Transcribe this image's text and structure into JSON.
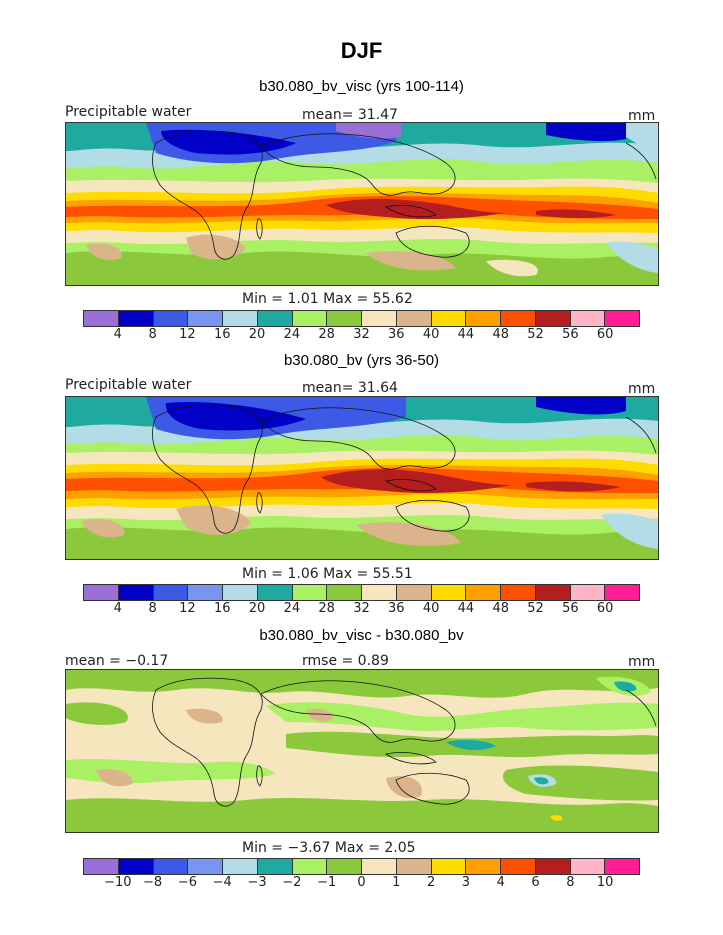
{
  "figure": {
    "title": "DJF"
  },
  "panels": [
    {
      "subtitle": "b30.080_bv_visc (yrs 100-114)",
      "left_label": "Precipitable water",
      "center_label": "mean=   31.47",
      "units": "mm",
      "stats": "Min =    1.01 Max =   55.62"
    },
    {
      "subtitle": "b30.080_bv (yrs 36-50)",
      "left_label": "Precipitable water",
      "center_label": "mean=   31.64",
      "units": "mm",
      "stats": "Min =    1.06 Max =   55.51"
    },
    {
      "subtitle": "b30.080_bv_visc - b30.080_bv",
      "left_label": "mean =   −0.17",
      "center_label": "rmse =    0.89",
      "units": "mm",
      "stats": "Min =   −3.67 Max =    2.05"
    }
  ],
  "colorbars": {
    "absolute": {
      "colors": [
        "#9a6fd8",
        "#0000c8",
        "#3c5ae6",
        "#7896f0",
        "#b4dce6",
        "#1eaaa0",
        "#aaf064",
        "#8cc83c",
        "#f5e6be",
        "#dcb48c",
        "#ffdc00",
        "#ffa000",
        "#ff5000",
        "#b41e1e",
        "#ffb4c8",
        "#ff1e96"
      ],
      "ticks": [
        "4",
        "8",
        "12",
        "16",
        "20",
        "24",
        "28",
        "32",
        "36",
        "40",
        "44",
        "48",
        "52",
        "56",
        "60"
      ]
    },
    "difference": {
      "colors": [
        "#9a6fd8",
        "#0000c8",
        "#3c5ae6",
        "#7896f0",
        "#b4dce6",
        "#1eaaa0",
        "#aaf064",
        "#8cc83c",
        "#f5e6be",
        "#dcb48c",
        "#ffdc00",
        "#ffa000",
        "#ff5000",
        "#b41e1e",
        "#ffb4c8",
        "#ff1e96"
      ],
      "ticks": [
        "−10",
        "−8",
        "−6",
        "−4",
        "−3",
        "−2",
        "−1",
        "0",
        "1",
        "2",
        "3",
        "4",
        "6",
        "8",
        "10"
      ]
    }
  }
}
